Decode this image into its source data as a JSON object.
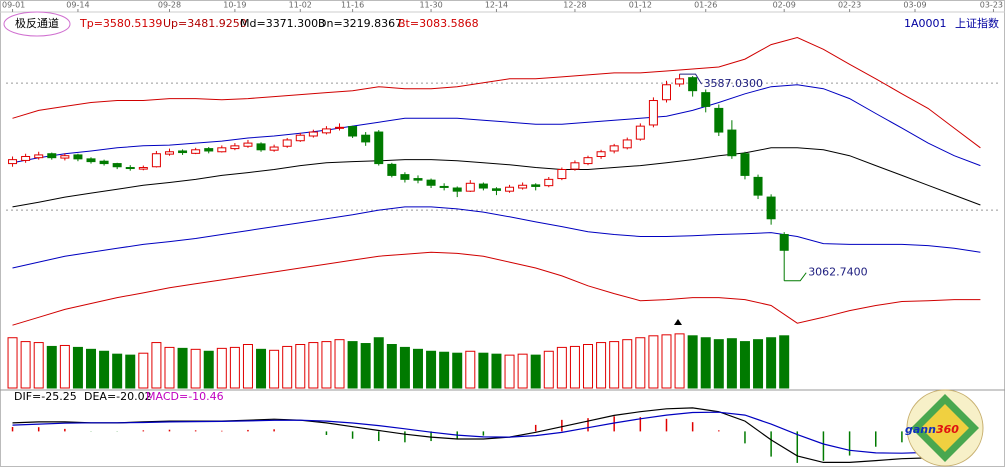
{
  "header": {
    "title": "极反通道",
    "indicators": [
      "Tp=3580.5139",
      "Up=3481.9250",
      "Md=3371.3003",
      "Dn=3219.8367",
      "Bt=3083.5868"
    ],
    "code": "1A0001",
    "name": "上证指数"
  },
  "chart_data": [
    {
      "type": "candlestick",
      "xlim": [
        -0.5,
        75.5
      ],
      "ylim": [
        2920,
        3737
      ],
      "yticks": [
        3564,
        3242
      ],
      "up_color": "#e00000",
      "down_color": "#007a00",
      "xticks": [
        {
          "value": 0,
          "label": "09-01"
        },
        {
          "value": 5,
          "label": "09-14"
        },
        {
          "value": 12,
          "label": "09-28"
        },
        {
          "value": 17,
          "label": "10-19"
        },
        {
          "value": 22,
          "label": "11-02"
        },
        {
          "value": 26,
          "label": "11-16"
        },
        {
          "value": 32,
          "label": "11-30"
        },
        {
          "value": 37,
          "label": "12-14"
        },
        {
          "value": 43,
          "label": "12-28"
        },
        {
          "value": 48,
          "label": "01-12"
        },
        {
          "value": 53,
          "label": "01-26"
        },
        {
          "value": 59,
          "label": "02-09"
        },
        {
          "value": 64,
          "label": "02-23"
        },
        {
          "value": 69,
          "label": "03-09"
        },
        {
          "value": 75,
          "label": "03-23"
        }
      ],
      "ohlc": [
        [
          3360,
          3378,
          3352,
          3370
        ],
        [
          3368,
          3385,
          3362,
          3378
        ],
        [
          3375,
          3390,
          3370,
          3382
        ],
        [
          3385,
          3388,
          3370,
          3375
        ],
        [
          3374,
          3386,
          3368,
          3380
        ],
        [
          3382,
          3385,
          3366,
          3372
        ],
        [
          3372,
          3376,
          3360,
          3365
        ],
        [
          3366,
          3370,
          3355,
          3360
        ],
        [
          3360,
          3362,
          3346,
          3352
        ],
        [
          3350,
          3356,
          3342,
          3348
        ],
        [
          3346,
          3355,
          3343,
          3350
        ],
        [
          3352,
          3392,
          3350,
          3385
        ],
        [
          3384,
          3398,
          3380,
          3390
        ],
        [
          3392,
          3396,
          3382,
          3388
        ],
        [
          3386,
          3400,
          3384,
          3395
        ],
        [
          3398,
          3402,
          3386,
          3392
        ],
        [
          3390,
          3406,
          3388,
          3400
        ],
        [
          3398,
          3412,
          3394,
          3405
        ],
        [
          3404,
          3420,
          3400,
          3412
        ],
        [
          3410,
          3414,
          3390,
          3395
        ],
        [
          3394,
          3408,
          3390,
          3402
        ],
        [
          3404,
          3425,
          3400,
          3420
        ],
        [
          3418,
          3438,
          3415,
          3432
        ],
        [
          3430,
          3446,
          3426,
          3440
        ],
        [
          3438,
          3455,
          3434,
          3448
        ],
        [
          3450,
          3462,
          3444,
          3452
        ],
        [
          3454,
          3456,
          3425,
          3430
        ],
        [
          3432,
          3440,
          3405,
          3415
        ],
        [
          3440,
          3445,
          3355,
          3360
        ],
        [
          3358,
          3362,
          3325,
          3330
        ],
        [
          3332,
          3338,
          3312,
          3320
        ],
        [
          3322,
          3330,
          3310,
          3318
        ],
        [
          3318,
          3322,
          3298,
          3305
        ],
        [
          3302,
          3310,
          3292,
          3300
        ],
        [
          3298,
          3302,
          3275,
          3290
        ],
        [
          3290,
          3318,
          3288,
          3310
        ],
        [
          3308,
          3312,
          3292,
          3298
        ],
        [
          3296,
          3300,
          3280,
          3292
        ],
        [
          3290,
          3306,
          3286,
          3300
        ],
        [
          3298,
          3312,
          3294,
          3305
        ],
        [
          3306,
          3310,
          3292,
          3302
        ],
        [
          3304,
          3326,
          3300,
          3320
        ],
        [
          3322,
          3350,
          3318,
          3345
        ],
        [
          3346,
          3368,
          3342,
          3362
        ],
        [
          3360,
          3380,
          3356,
          3375
        ],
        [
          3378,
          3395,
          3372,
          3390
        ],
        [
          3392,
          3410,
          3386,
          3405
        ],
        [
          3400,
          3426,
          3396,
          3420
        ],
        [
          3422,
          3462,
          3418,
          3455
        ],
        [
          3458,
          3528,
          3452,
          3520
        ],
        [
          3522,
          3570,
          3515,
          3560
        ],
        [
          3562,
          3587.03,
          3555,
          3575
        ],
        [
          3578,
          3582,
          3530,
          3545
        ],
        [
          3540,
          3548,
          3490,
          3505
        ],
        [
          3500,
          3510,
          3430,
          3440
        ],
        [
          3445,
          3470,
          3372,
          3380
        ],
        [
          3385,
          3390,
          3320,
          3330
        ],
        [
          3325,
          3332,
          3270,
          3280
        ],
        [
          3275,
          3282,
          3205,
          3220
        ],
        [
          3180,
          3186,
          3062.74,
          3140
        ]
      ],
      "band_x": [
        0,
        2,
        4,
        6,
        8,
        10,
        12,
        14,
        16,
        18,
        20,
        22,
        24,
        26,
        28,
        30,
        32,
        34,
        36,
        38,
        40,
        42,
        44,
        46,
        48,
        50,
        52,
        54,
        56,
        58,
        60,
        62,
        64,
        66,
        68,
        70,
        72,
        74
      ],
      "bands": [
        {
          "color": "#d00000",
          "values": [
            3475,
            3495,
            3505,
            3515,
            3520,
            3520,
            3525,
            3525,
            3522,
            3525,
            3530,
            3535,
            3540,
            3545,
            3555,
            3550,
            3550,
            3555,
            3565,
            3575,
            3575,
            3580,
            3585,
            3590,
            3590,
            3595,
            3600,
            3605,
            3625,
            3662,
            3680,
            3650,
            3612,
            3575,
            3537,
            3500,
            3450,
            3400
          ]
        },
        {
          "color": "#0000c0",
          "values": [
            3362,
            3375,
            3385,
            3392,
            3400,
            3405,
            3407,
            3412,
            3417,
            3425,
            3430,
            3437,
            3445,
            3455,
            3465,
            3475,
            3475,
            3475,
            3470,
            3465,
            3460,
            3460,
            3465,
            3470,
            3475,
            3480,
            3495,
            3515,
            3537,
            3555,
            3560,
            3550,
            3525,
            3487,
            3450,
            3412,
            3380,
            3355
          ]
        },
        {
          "color": "#000000",
          "values": [
            3250,
            3262,
            3275,
            3285,
            3295,
            3305,
            3312,
            3320,
            3330,
            3337,
            3345,
            3355,
            3362,
            3365,
            3367,
            3370,
            3370,
            3367,
            3362,
            3357,
            3350,
            3345,
            3345,
            3350,
            3355,
            3362,
            3370,
            3380,
            3387,
            3400,
            3400,
            3395,
            3380,
            3355,
            3330,
            3305,
            3280,
            3255
          ]
        },
        {
          "color": "#0000c0",
          "values": [
            3095,
            3110,
            3125,
            3135,
            3145,
            3155,
            3162,
            3170,
            3180,
            3190,
            3200,
            3210,
            3220,
            3230,
            3242,
            3250,
            3250,
            3245,
            3237,
            3225,
            3212,
            3200,
            3187,
            3180,
            3175,
            3175,
            3177,
            3180,
            3182,
            3185,
            3175,
            3157,
            3155,
            3155,
            3155,
            3152,
            3145,
            3135
          ]
        },
        {
          "color": "#d00000",
          "values": [
            2950,
            2970,
            2990,
            3005,
            3020,
            3032,
            3045,
            3055,
            3065,
            3075,
            3085,
            3095,
            3105,
            3115,
            3125,
            3130,
            3135,
            3132,
            3125,
            3110,
            3095,
            3075,
            3050,
            3030,
            3012,
            3015,
            3020,
            3020,
            3015,
            3000,
            2955,
            2970,
            2987,
            3000,
            3010,
            3012,
            3015,
            3015
          ]
        }
      ],
      "annotations": [
        {
          "x": 51,
          "value": 3587.03,
          "label": "3587.0300"
        },
        {
          "x": 59,
          "value": 3062.74,
          "label": "3062.7400"
        }
      ]
    },
    {
      "type": "volume",
      "ylim": [
        0,
        600
      ],
      "values": [
        520,
        480,
        470,
        430,
        440,
        420,
        400,
        380,
        350,
        340,
        360,
        470,
        420,
        410,
        400,
        380,
        410,
        420,
        450,
        400,
        390,
        430,
        450,
        470,
        480,
        500,
        480,
        460,
        520,
        450,
        420,
        400,
        380,
        370,
        360,
        380,
        360,
        350,
        340,
        350,
        340,
        380,
        420,
        430,
        450,
        470,
        480,
        500,
        520,
        540,
        550,
        560,
        540,
        520,
        500,
        510,
        480,
        500,
        520,
        540
      ]
    },
    {
      "type": "macd",
      "ylim": [
        -32,
        28
      ],
      "labels": [
        "DIF=-25.25",
        "DEA=-20.02",
        "MACD=-10.46"
      ],
      "x": [
        0,
        2,
        4,
        6,
        8,
        10,
        12,
        14,
        16,
        18,
        20,
        22,
        24,
        26,
        28,
        30,
        32,
        34,
        36,
        38,
        40,
        42,
        44,
        46,
        48,
        50,
        52,
        54,
        56,
        58,
        60,
        62,
        64,
        66,
        68,
        70
      ],
      "series": [
        {
          "color": "#000000",
          "values": [
            8.1,
            9.0,
            9.0,
            8.1,
            8.1,
            9.0,
            9.8,
            9.8,
            9.8,
            10.7,
            11.6,
            10.7,
            8.1,
            4.5,
            0.9,
            -2.7,
            -5.4,
            -7.2,
            -7.2,
            -5.4,
            -0.9,
            4.5,
            9.8,
            15.2,
            18.8,
            21.5,
            22.4,
            18.8,
            9.8,
            -8.1,
            -23.3,
            -29.5,
            -29.5,
            -27.8,
            -26.0,
            -25.25
          ]
        },
        {
          "color": "#0000c0",
          "values": [
            6.0,
            7.0,
            7.8,
            8.2,
            8.2,
            8.5,
            9.0,
            9.3,
            9.5,
            10.0,
            10.6,
            10.7,
            9.8,
            8.0,
            5.5,
            2.5,
            -0.8,
            -3.5,
            -5.2,
            -5.4,
            -4.0,
            -1.0,
            3.5,
            8.0,
            12.0,
            15.5,
            18.0,
            18.3,
            15.5,
            7.0,
            -3.0,
            -12.0,
            -18.0,
            -20.5,
            -20.8,
            -20.02
          ]
        }
      ],
      "histogram": [
        4.2,
        4.0,
        2.4,
        -0.2,
        -0.2,
        1.0,
        1.6,
        1.0,
        0.6,
        1.4,
        2.0,
        0,
        -3.4,
        -7.0,
        -9.2,
        -10.4,
        -9.2,
        -7.4,
        -4.0,
        0,
        6.2,
        11.0,
        12.6,
        14.4,
        13.6,
        12.0,
        8.8,
        1.0,
        -11.4,
        -24.0,
        -30.0,
        -28.0,
        -23.0,
        -14.6,
        -10.4,
        -10.46
      ]
    }
  ],
  "logo": {
    "word": "gann",
    "number": "360"
  }
}
